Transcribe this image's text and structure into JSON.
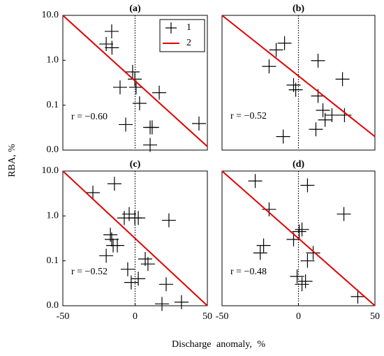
{
  "xlabel": "Discharge anomaly, %",
  "ylabel": "RBA, %",
  "chart_data": [
    {
      "type": "scatter",
      "title": "(a)",
      "annotation": "r = −0.60",
      "log_y": true,
      "vline": 0,
      "xlim": [
        -50,
        50
      ],
      "ylim": [
        0.01,
        10
      ],
      "yticks": [
        {
          "value": 0.01,
          "label": "0.0"
        },
        {
          "value": 0.1,
          "label": "0.1"
        },
        {
          "value": 1,
          "label": "1.0"
        },
        {
          "value": 10,
          "label": "10.0"
        }
      ],
      "legend": "upper right",
      "series": [
        {
          "name": "1",
          "color": "#000000",
          "x": [
            -16.2,
            -20,
            -16,
            -1.7,
            -0.2,
            -10.4,
            0.7,
            16.7,
            3.1,
            -6.5,
            10.4,
            11.8,
            44.2,
            10.4
          ],
          "values": [
            4.4,
            2.3,
            1.9,
            0.55,
            0.38,
            0.25,
            0.25,
            0.19,
            0.11,
            0.037,
            0.032,
            0.032,
            0.039,
            0.013
          ]
        },
        {
          "name": "2",
          "type": "line",
          "color": "#e00000",
          "x": [
            -50,
            50
          ],
          "values": [
            10,
            0.012
          ]
        }
      ]
    },
    {
      "type": "scatter",
      "title": "(b)",
      "annotation": "r = −0.52",
      "log_y": true,
      "vline": 0,
      "xlim": [
        -50,
        50
      ],
      "ylim": [
        0.01,
        10
      ],
      "series": [
        {
          "color": "#000000",
          "x": [
            -9.1,
            -14.6,
            -19.2,
            12.8,
            -3.2,
            -1.8,
            28.8,
            12.8,
            16,
            21.9,
            30.1,
            17.4,
            11.4,
            -10
          ],
          "values": [
            2.4,
            1.7,
            0.73,
            0.98,
            0.28,
            0.22,
            0.38,
            0.16,
            0.077,
            0.06,
            0.06,
            0.047,
            0.029,
            0.02
          ]
        },
        {
          "type": "line",
          "color": "#e00000",
          "x": [
            -50,
            50
          ],
          "values": [
            10,
            0.02
          ]
        }
      ]
    },
    {
      "type": "scatter",
      "title": "(c)",
      "annotation": "r = −0.52",
      "log_y": true,
      "vline": 0,
      "xlim": [
        -50,
        50
      ],
      "ylim": [
        0.01,
        10
      ],
      "xticks": [
        -50,
        0,
        50
      ],
      "yticks": [
        {
          "value": 0.01,
          "label": "0.0"
        },
        {
          "value": 0.1,
          "label": "0.1"
        },
        {
          "value": 1,
          "label": "1.0"
        },
        {
          "value": 10,
          "label": "10.0"
        }
      ],
      "series": [
        {
          "color": "#000000",
          "x": [
            -29.2,
            -14.3,
            -7.5,
            -4.1,
            -0.2,
            2.2,
            23.4,
            -17.1,
            -16.2,
            -12.3,
            -15.2,
            -20,
            7,
            8.9,
            -5.1,
            -2.7,
            2.2,
            21.5,
            18.6,
            32.1
          ],
          "values": [
            3.3,
            5.2,
            0.9,
            1.1,
            0.9,
            0.9,
            0.8,
            0.38,
            0.3,
            0.22,
            0.22,
            0.13,
            0.11,
            0.085,
            0.065,
            0.033,
            0.04,
            0.03,
            0.011,
            0.012
          ]
        },
        {
          "type": "line",
          "color": "#e00000",
          "x": [
            -50,
            50
          ],
          "values": [
            10,
            0.01
          ]
        }
      ]
    },
    {
      "type": "scatter",
      "title": "(d)",
      "annotation": "r = −0.48",
      "log_y": true,
      "vline": 0,
      "xlim": [
        -50,
        50
      ],
      "ylim": [
        0.01,
        10
      ],
      "xticks": [
        -50,
        0,
        50
      ],
      "series": [
        {
          "color": "#000000",
          "x": [
            -28.3,
            5.9,
            -19.2,
            29.7,
            2.3,
            0.5,
            -3.2,
            -22.8,
            -25,
            9.6,
            5.9,
            -0.9,
            4.6,
            2.3,
            38.8
          ],
          "values": [
            6,
            4.8,
            1.4,
            1.1,
            0.5,
            0.45,
            0.3,
            0.22,
            0.15,
            0.15,
            0.1,
            0.045,
            0.035,
            0.03,
            0.016
          ]
        },
        {
          "type": "line",
          "color": "#e00000",
          "x": [
            -50,
            50
          ],
          "values": [
            10,
            0.01
          ]
        }
      ]
    }
  ]
}
